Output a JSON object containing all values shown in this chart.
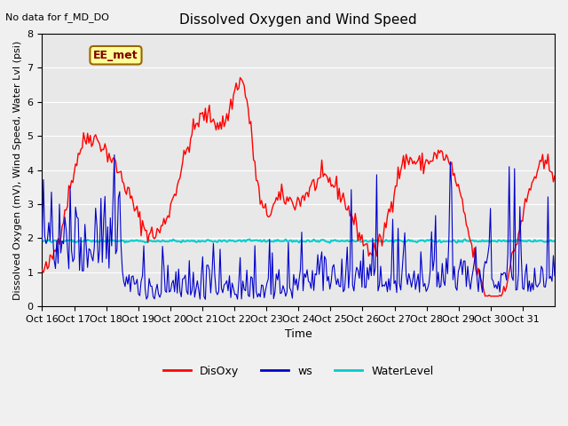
{
  "title": "Dissolved Oxygen and Wind Speed",
  "ylabel": "Dissolved Oxygen (mV), Wind Speed, Water Lvl (psi)",
  "xlabel": "Time",
  "top_left_text": "No data for f_MD_DO",
  "annotation_text": "EE_met",
  "ylim": [
    0.0,
    8.0
  ],
  "yticks": [
    0.0,
    1.0,
    2.0,
    3.0,
    4.0,
    5.0,
    6.0,
    7.0,
    8.0
  ],
  "xtick_labels": [
    "Oct 16",
    "Oct 17",
    "Oct 18",
    "Oct 19",
    "Oct 20",
    "Oct 21",
    "Oct 22",
    "Oct 23",
    "Oct 24",
    "Oct 25",
    "Oct 26",
    "Oct 27",
    "Oct 28",
    "Oct 29",
    "Oct 30",
    "Oct 31"
  ],
  "disoxy_color": "#ff0000",
  "ws_color": "#0000cc",
  "waterlevel_color": "#00cccc",
  "waterlevel_value": 1.92,
  "background_color": "#e8e8e8",
  "fig_background_color": "#f0f0f0",
  "legend_labels": [
    "DisOxy",
    "ws",
    "WaterLevel"
  ],
  "annotation_box_color": "#ffff99",
  "annotation_border_color": "#996600",
  "n_days": 16,
  "n_points": 384
}
